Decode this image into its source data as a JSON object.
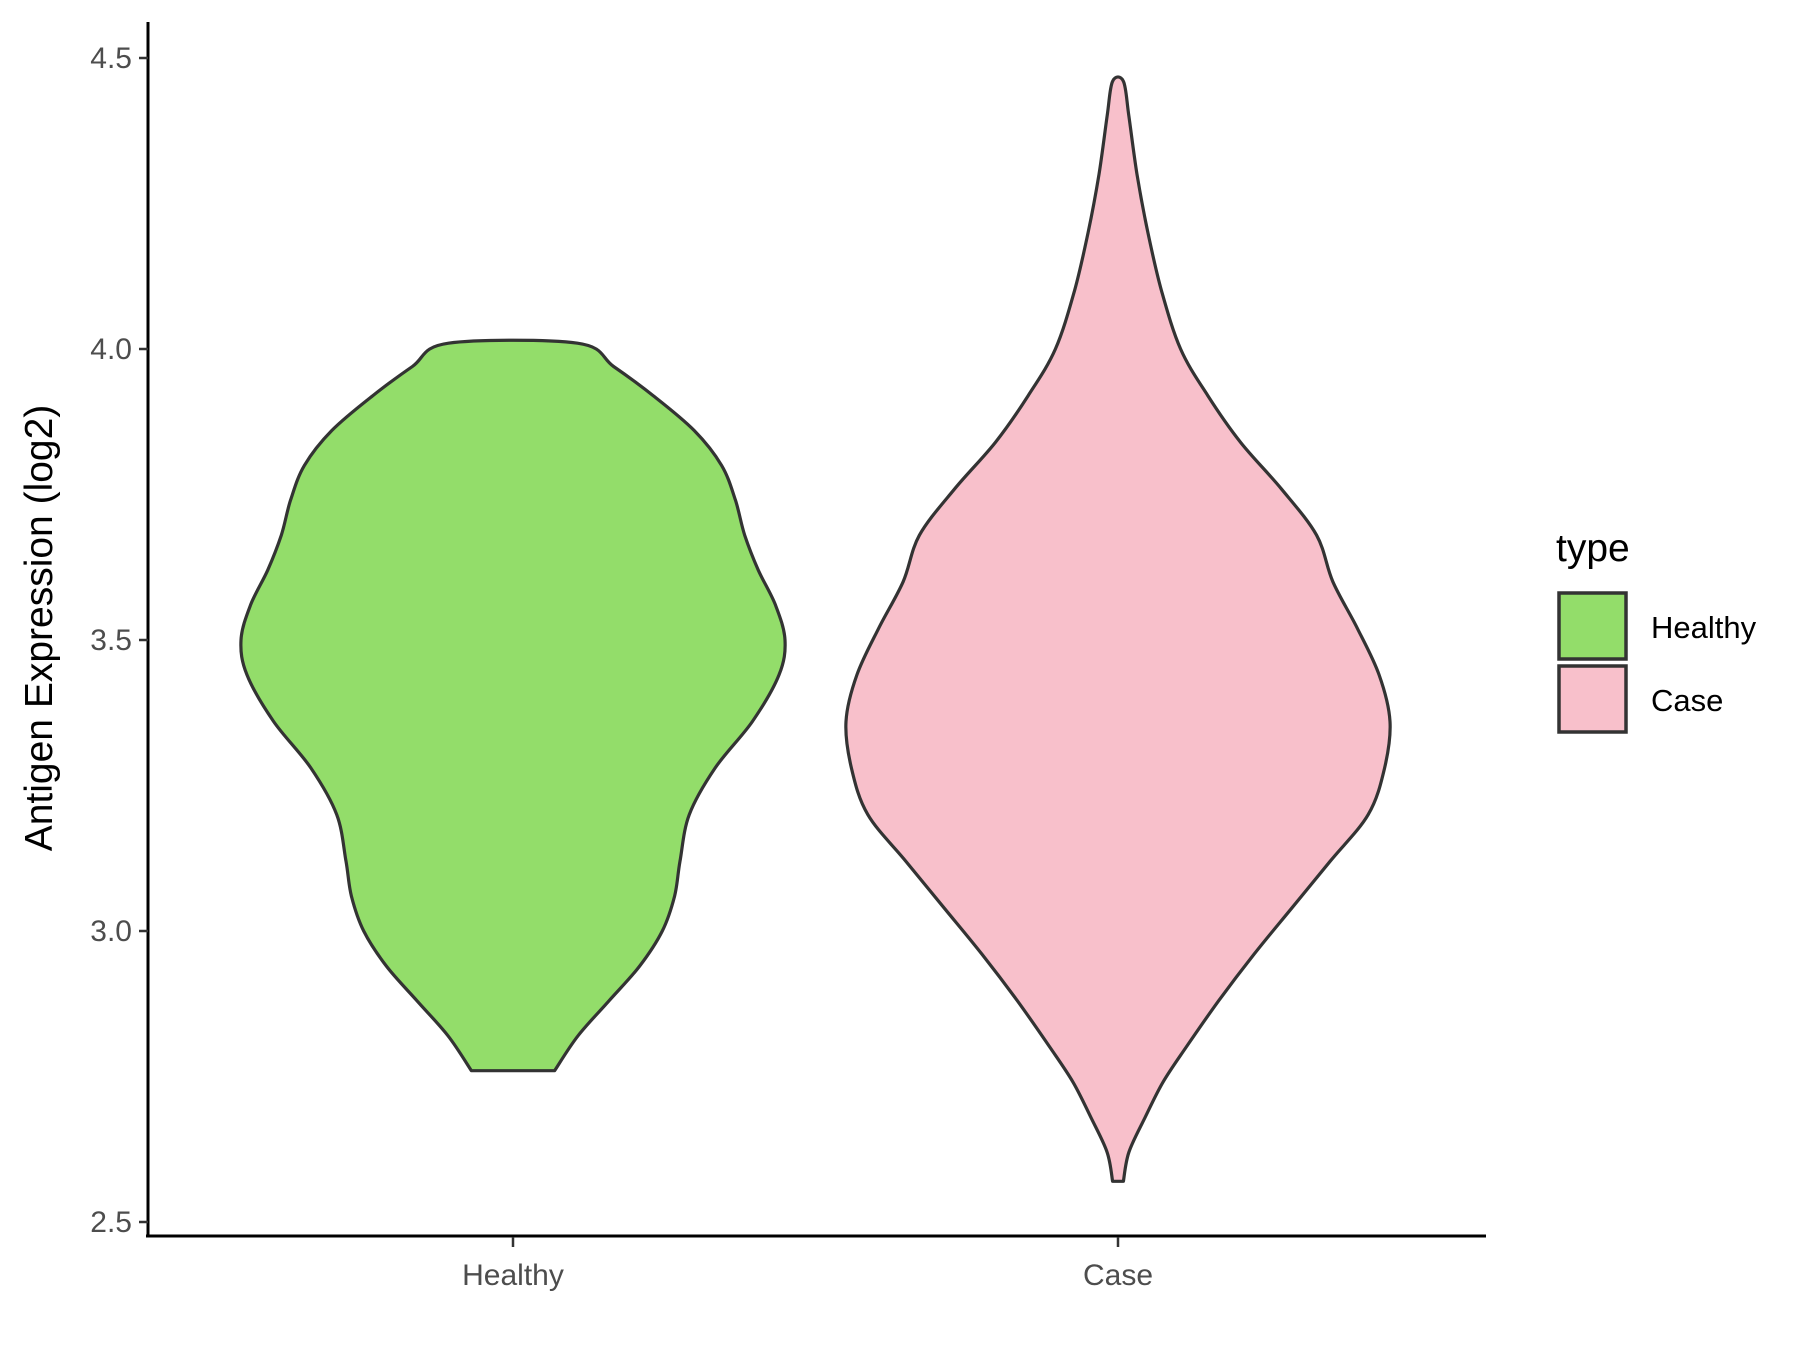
{
  "chart_data": {
    "type": "violin",
    "ylabel": "Antigen Expression (log2)",
    "xlabel": "",
    "ylim": [
      2.48,
      4.56
    ],
    "yticks": [
      "2.5",
      "3.0",
      "3.5",
      "4.0",
      "4.5"
    ],
    "categories": [
      "Healthy",
      "Case"
    ],
    "legend": {
      "title": "type",
      "position": "right",
      "entries": [
        "Healthy",
        "Case"
      ]
    },
    "grid": false,
    "series": [
      {
        "name": "Healthy",
        "color": "#93DD6A",
        "min": 2.76,
        "max": 4.01,
        "density_profile": [
          [
            2.76,
            0.153
          ],
          [
            2.82,
            0.239
          ],
          [
            2.88,
            0.353
          ],
          [
            2.94,
            0.466
          ],
          [
            3.0,
            0.549
          ],
          [
            3.06,
            0.594
          ],
          [
            3.12,
            0.614
          ],
          [
            3.2,
            0.648
          ],
          [
            3.28,
            0.743
          ],
          [
            3.36,
            0.88
          ],
          [
            3.44,
            0.978
          ],
          [
            3.5,
            1.0
          ],
          [
            3.56,
            0.965
          ],
          [
            3.62,
            0.902
          ],
          [
            3.68,
            0.852
          ],
          [
            3.74,
            0.818
          ],
          [
            3.8,
            0.767
          ],
          [
            3.86,
            0.666
          ],
          [
            3.92,
            0.515
          ],
          [
            3.97,
            0.37
          ],
          [
            4.01,
            0.237
          ]
        ]
      },
      {
        "name": "Case",
        "color": "#F8C0CB",
        "min": 2.57,
        "max": 4.46,
        "density_profile": [
          [
            2.57,
            0.02
          ],
          [
            2.62,
            0.04
          ],
          [
            2.68,
            0.1
          ],
          [
            2.74,
            0.165
          ],
          [
            2.8,
            0.25
          ],
          [
            2.88,
            0.37
          ],
          [
            2.96,
            0.5
          ],
          [
            3.04,
            0.64
          ],
          [
            3.12,
            0.78
          ],
          [
            3.2,
            0.92
          ],
          [
            3.28,
            0.98
          ],
          [
            3.36,
            1.0
          ],
          [
            3.44,
            0.96
          ],
          [
            3.52,
            0.88
          ],
          [
            3.6,
            0.79
          ],
          [
            3.68,
            0.73
          ],
          [
            3.76,
            0.6
          ],
          [
            3.84,
            0.45
          ],
          [
            3.92,
            0.33
          ],
          [
            4.0,
            0.23
          ],
          [
            4.1,
            0.16
          ],
          [
            4.2,
            0.11
          ],
          [
            4.3,
            0.07
          ],
          [
            4.4,
            0.04
          ],
          [
            4.46,
            0.02
          ]
        ]
      }
    ]
  }
}
